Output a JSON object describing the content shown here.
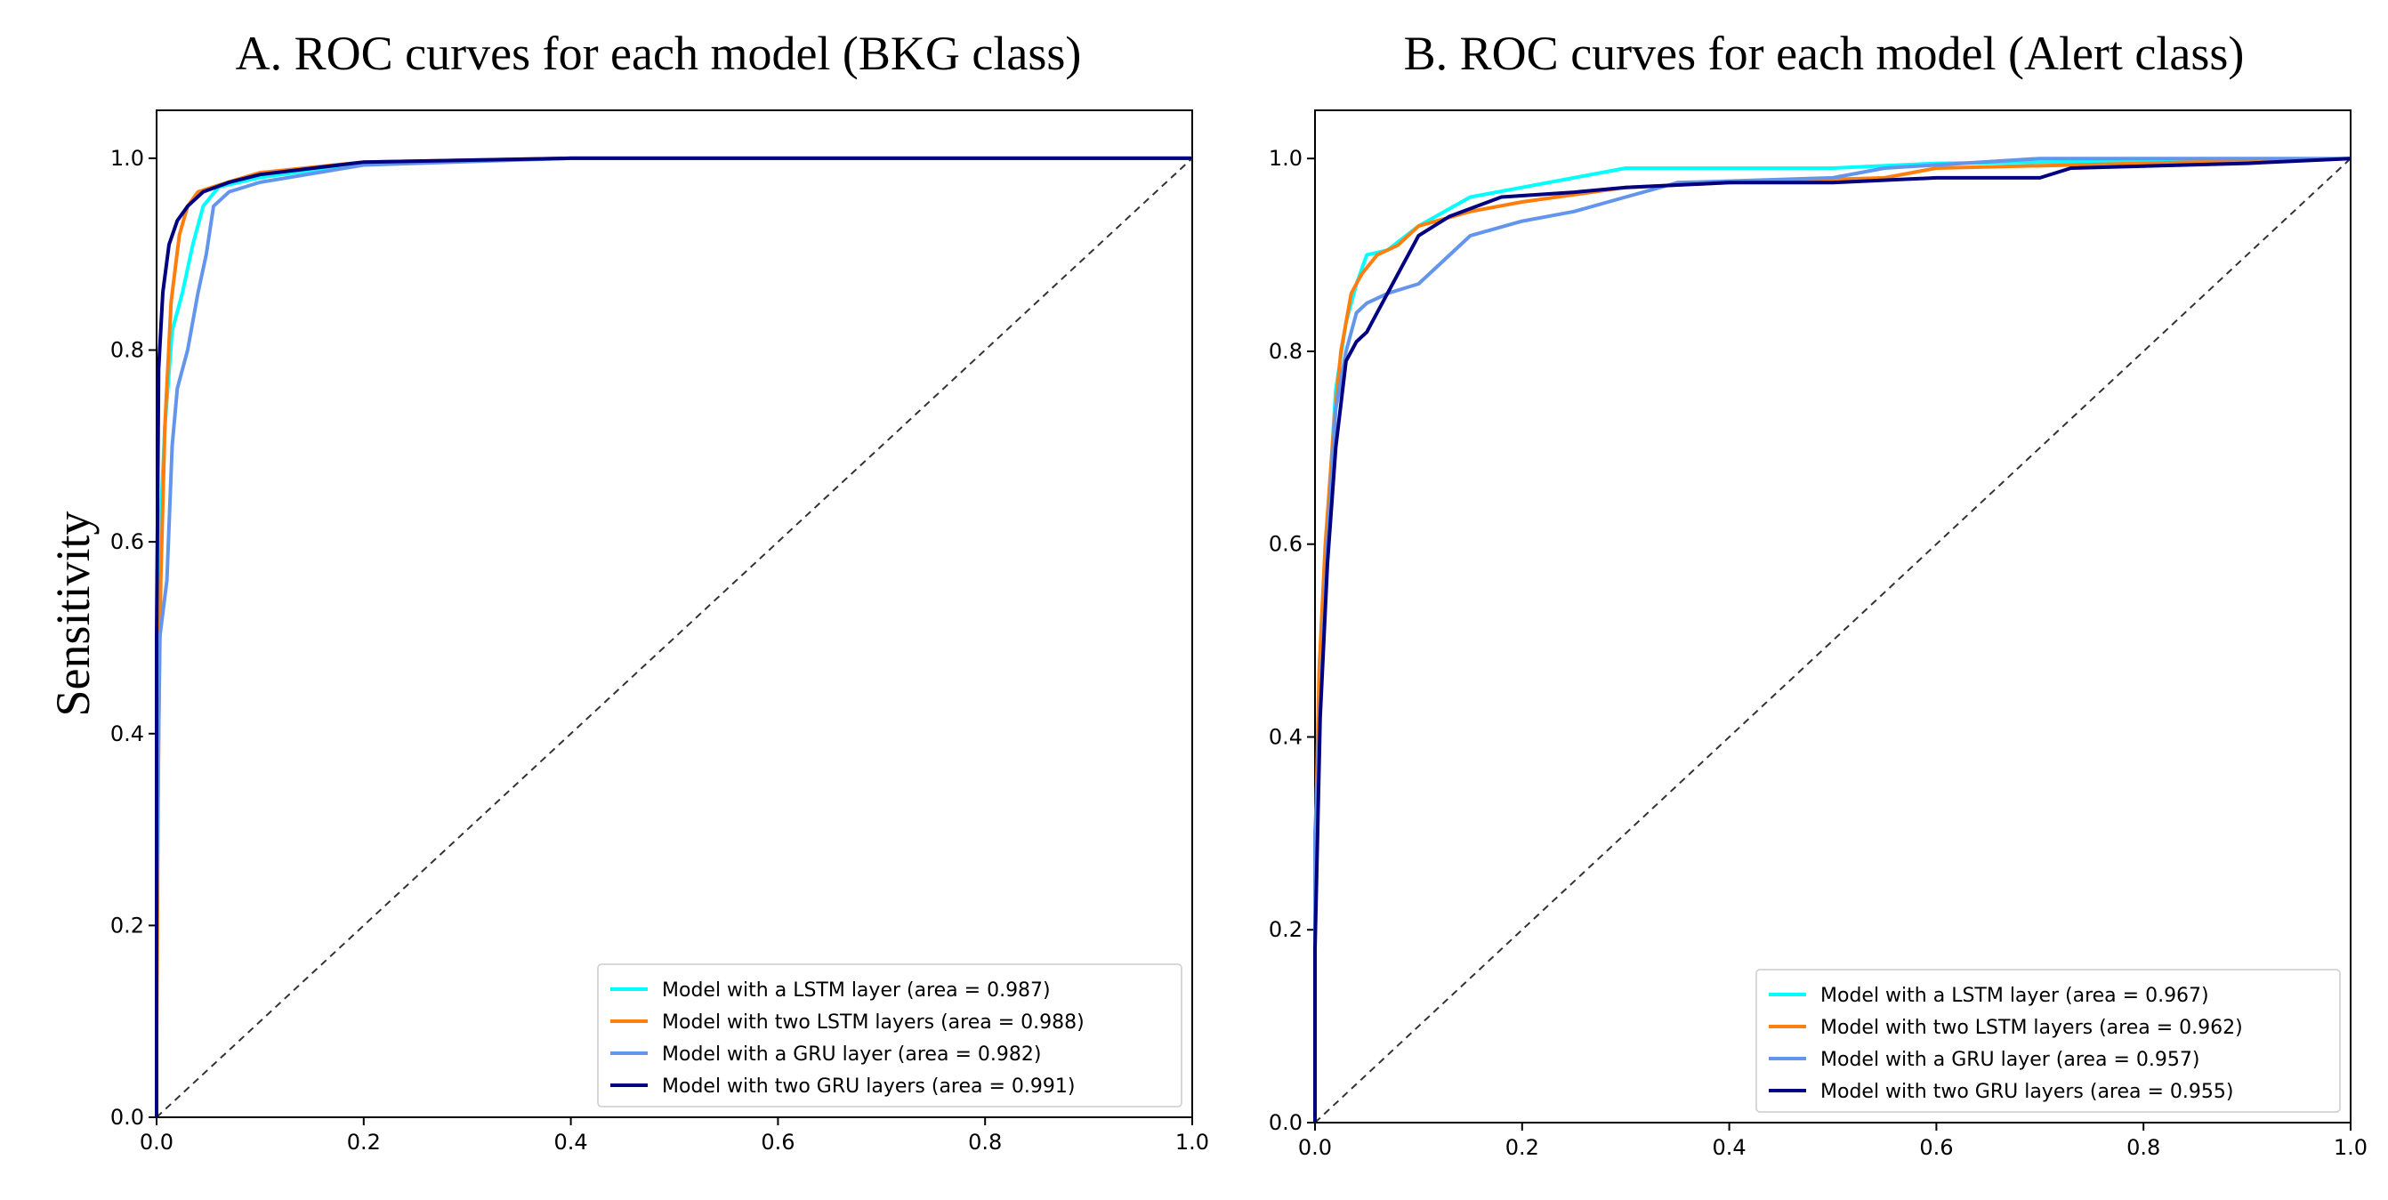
{
  "y_axis_label": "Sensitivity",
  "chart_data": [
    {
      "type": "line",
      "title": "A. ROC curves for each model (BKG class)",
      "xlabel": "",
      "ylabel": "Sensitivity",
      "xlim": [
        0,
        1
      ],
      "ylim": [
        0,
        1.05
      ],
      "x_ticks": [
        "0.0",
        "0.2",
        "0.4",
        "0.6",
        "0.8",
        "1.0"
      ],
      "y_ticks": [
        "0.0",
        "0.2",
        "0.4",
        "0.6",
        "0.8",
        "1.0"
      ],
      "legend_position": "lower-right",
      "reference_line": "diagonal-dashed",
      "series": [
        {
          "name": "Model with a LSTM layer (area = 0.987)",
          "color": "#00ffff",
          "points": [
            [
              0,
              0
            ],
            [
              0,
              0.35
            ],
            [
              0.003,
              0.6
            ],
            [
              0.008,
              0.72
            ],
            [
              0.015,
              0.82
            ],
            [
              0.025,
              0.86
            ],
            [
              0.035,
              0.91
            ],
            [
              0.045,
              0.95
            ],
            [
              0.06,
              0.97
            ],
            [
              0.1,
              0.98
            ],
            [
              0.2,
              0.995
            ],
            [
              0.4,
              1.0
            ],
            [
              1,
              1.0
            ]
          ]
        },
        {
          "name": "Model with two LSTM layers (area = 0.988)",
          "color": "#ff7f0e",
          "points": [
            [
              0,
              0
            ],
            [
              0,
              0.08
            ],
            [
              0.002,
              0.4
            ],
            [
              0.004,
              0.56
            ],
            [
              0.008,
              0.72
            ],
            [
              0.014,
              0.85
            ],
            [
              0.022,
              0.92
            ],
            [
              0.03,
              0.95
            ],
            [
              0.04,
              0.965
            ],
            [
              0.06,
              0.972
            ],
            [
              0.1,
              0.985
            ],
            [
              0.2,
              0.996
            ],
            [
              0.4,
              1.0
            ],
            [
              1,
              1.0
            ]
          ]
        },
        {
          "name": "Model with a GRU layer (area = 0.982)",
          "color": "#6495ed",
          "points": [
            [
              0,
              0
            ],
            [
              0,
              0.2
            ],
            [
              0.003,
              0.5
            ],
            [
              0.01,
              0.56
            ],
            [
              0.015,
              0.7
            ],
            [
              0.02,
              0.76
            ],
            [
              0.03,
              0.8
            ],
            [
              0.04,
              0.86
            ],
            [
              0.048,
              0.9
            ],
            [
              0.055,
              0.95
            ],
            [
              0.07,
              0.965
            ],
            [
              0.1,
              0.975
            ],
            [
              0.2,
              0.993
            ],
            [
              0.4,
              1.0
            ],
            [
              1,
              1.0
            ]
          ]
        },
        {
          "name": "Model with two GRU layers (area = 0.991)",
          "color": "#000080",
          "points": [
            [
              0,
              0
            ],
            [
              0,
              0.5
            ],
            [
              0.002,
              0.78
            ],
            [
              0.006,
              0.86
            ],
            [
              0.012,
              0.91
            ],
            [
              0.02,
              0.935
            ],
            [
              0.03,
              0.95
            ],
            [
              0.045,
              0.965
            ],
            [
              0.07,
              0.975
            ],
            [
              0.1,
              0.983
            ],
            [
              0.2,
              0.996
            ],
            [
              0.4,
              1.0
            ],
            [
              1,
              1.0
            ]
          ]
        }
      ]
    },
    {
      "type": "line",
      "title": "B. ROC curves for each model (Alert class)",
      "xlabel": "",
      "ylabel": "",
      "xlim": [
        0,
        1
      ],
      "ylim": [
        0,
        1.05
      ],
      "x_ticks": [
        "0.0",
        "0.2",
        "0.4",
        "0.6",
        "0.8",
        "1.0"
      ],
      "y_ticks": [
        "0.0",
        "0.2",
        "0.4",
        "0.6",
        "0.8",
        "1.0"
      ],
      "legend_position": "lower-right",
      "reference_line": "diagonal-dashed",
      "series": [
        {
          "name": "Model with a LSTM layer (area = 0.967)",
          "color": "#00ffff",
          "points": [
            [
              0,
              0
            ],
            [
              0,
              0.2
            ],
            [
              0.005,
              0.45
            ],
            [
              0.012,
              0.62
            ],
            [
              0.02,
              0.76
            ],
            [
              0.03,
              0.83
            ],
            [
              0.04,
              0.87
            ],
            [
              0.05,
              0.9
            ],
            [
              0.07,
              0.905
            ],
            [
              0.1,
              0.93
            ],
            [
              0.15,
              0.96
            ],
            [
              0.2,
              0.97
            ],
            [
              0.25,
              0.98
            ],
            [
              0.3,
              0.99
            ],
            [
              0.5,
              0.99
            ],
            [
              0.6,
              0.995
            ],
            [
              1,
              1.0
            ]
          ]
        },
        {
          "name": "Model with two LSTM layers (area = 0.962)",
          "color": "#ff7f0e",
          "points": [
            [
              0,
              0
            ],
            [
              0,
              0.27
            ],
            [
              0.004,
              0.47
            ],
            [
              0.01,
              0.6
            ],
            [
              0.018,
              0.72
            ],
            [
              0.025,
              0.8
            ],
            [
              0.035,
              0.86
            ],
            [
              0.045,
              0.88
            ],
            [
              0.06,
              0.9
            ],
            [
              0.08,
              0.91
            ],
            [
              0.1,
              0.93
            ],
            [
              0.15,
              0.945
            ],
            [
              0.2,
              0.955
            ],
            [
              0.3,
              0.97
            ],
            [
              0.4,
              0.975
            ],
            [
              0.55,
              0.98
            ],
            [
              0.6,
              0.99
            ],
            [
              0.8,
              0.995
            ],
            [
              1,
              1.0
            ]
          ]
        },
        {
          "name": "Model with a GRU layer (area = 0.957)",
          "color": "#6495ed",
          "points": [
            [
              0,
              0
            ],
            [
              0,
              0.3
            ],
            [
              0.006,
              0.45
            ],
            [
              0.012,
              0.6
            ],
            [
              0.02,
              0.74
            ],
            [
              0.03,
              0.8
            ],
            [
              0.04,
              0.84
            ],
            [
              0.05,
              0.85
            ],
            [
              0.07,
              0.86
            ],
            [
              0.1,
              0.87
            ],
            [
              0.13,
              0.9
            ],
            [
              0.15,
              0.92
            ],
            [
              0.2,
              0.935
            ],
            [
              0.25,
              0.945
            ],
            [
              0.3,
              0.96
            ],
            [
              0.35,
              0.975
            ],
            [
              0.5,
              0.98
            ],
            [
              0.55,
              0.99
            ],
            [
              0.7,
              1.0
            ],
            [
              1,
              1.0
            ]
          ]
        },
        {
          "name": "Model with two GRU layers (area = 0.955)",
          "color": "#000080",
          "points": [
            [
              0,
              0
            ],
            [
              0,
              0.18
            ],
            [
              0.005,
              0.42
            ],
            [
              0.012,
              0.58
            ],
            [
              0.02,
              0.7
            ],
            [
              0.03,
              0.79
            ],
            [
              0.04,
              0.81
            ],
            [
              0.05,
              0.82
            ],
            [
              0.06,
              0.84
            ],
            [
              0.08,
              0.88
            ],
            [
              0.1,
              0.92
            ],
            [
              0.13,
              0.94
            ],
            [
              0.18,
              0.96
            ],
            [
              0.25,
              0.965
            ],
            [
              0.3,
              0.97
            ],
            [
              0.4,
              0.975
            ],
            [
              0.5,
              0.975
            ],
            [
              0.6,
              0.98
            ],
            [
              0.7,
              0.98
            ],
            [
              0.73,
              0.99
            ],
            [
              0.9,
              0.995
            ],
            [
              1,
              1.0
            ]
          ]
        }
      ]
    }
  ]
}
